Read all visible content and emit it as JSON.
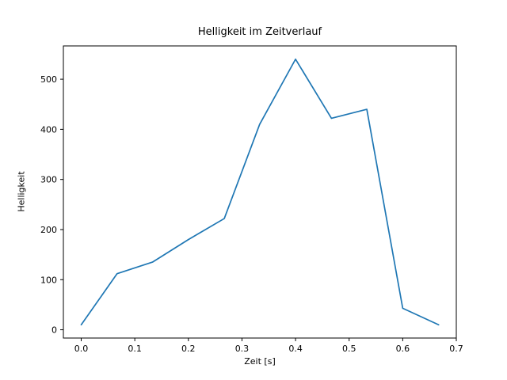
{
  "figure": {
    "background": "#ffffff",
    "spine_color": "#000000"
  },
  "chart_data": {
    "type": "line",
    "title": "Helligkeit im Zeitverlauf",
    "xlabel": "Zeit [s]",
    "ylabel": "Helligkeit",
    "line_color": "#1f77b4",
    "x": [
      0.0,
      0.067,
      0.133,
      0.2,
      0.267,
      0.333,
      0.4,
      0.467,
      0.533,
      0.6,
      0.667
    ],
    "y": [
      10,
      112,
      135,
      180,
      222,
      410,
      540,
      422,
      440,
      43,
      10
    ],
    "xlim": [
      -0.0333,
      0.7
    ],
    "ylim": [
      -16.5,
      566.5
    ],
    "xticks": [
      0.0,
      0.1,
      0.2,
      0.3,
      0.4,
      0.5,
      0.6,
      0.7
    ],
    "xtick_labels": [
      "0.0",
      "0.1",
      "0.2",
      "0.3",
      "0.4",
      "0.5",
      "0.6",
      "0.7"
    ],
    "yticks": [
      0,
      100,
      200,
      300,
      400,
      500
    ],
    "ytick_labels": [
      "0",
      "100",
      "200",
      "300",
      "400",
      "500"
    ],
    "grid": false,
    "legend_position": "none"
  }
}
